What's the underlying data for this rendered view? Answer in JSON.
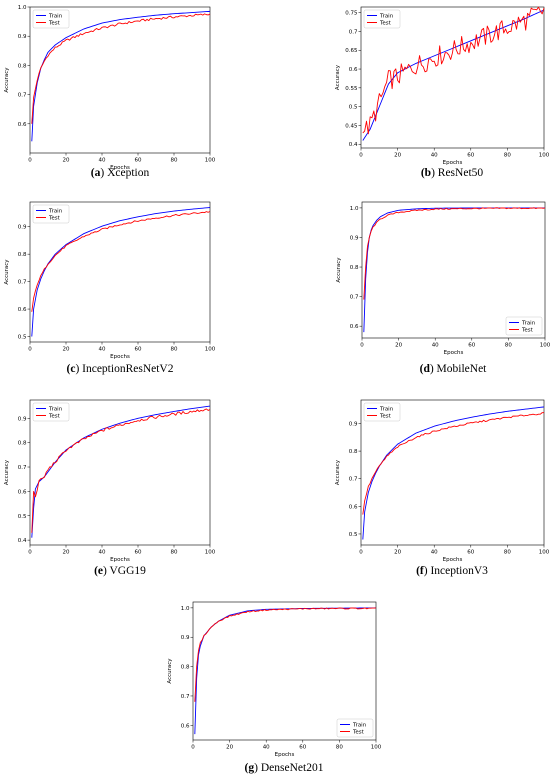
{
  "chart_data": [
    {
      "type": "line",
      "caption_letter": "(a)",
      "caption_name": "Xception",
      "xlabel": "Epochs",
      "ylabel": "Accuracy",
      "xlim": [
        0,
        100
      ],
      "ylim": [
        0.5,
        1.0
      ],
      "xticks": [
        0,
        20,
        40,
        60,
        80,
        100
      ],
      "yticks": [
        0.6,
        0.7,
        0.8,
        0.9,
        1.0
      ],
      "legend_position": "upper-left",
      "series": [
        {
          "name": "Train",
          "color": "#0000ff",
          "x": [
            1,
            2,
            4,
            6,
            8,
            10,
            14,
            20,
            30,
            40,
            50,
            60,
            70,
            80,
            90,
            100
          ],
          "y": [
            0.54,
            0.66,
            0.74,
            0.79,
            0.82,
            0.845,
            0.87,
            0.895,
            0.925,
            0.945,
            0.957,
            0.965,
            0.972,
            0.977,
            0.981,
            0.985
          ]
        },
        {
          "name": "Test",
          "color": "#ff0000",
          "x": [
            1,
            2,
            4,
            6,
            8,
            10,
            14,
            20,
            30,
            40,
            50,
            60,
            70,
            80,
            90,
            100
          ],
          "y": [
            0.6,
            0.69,
            0.75,
            0.79,
            0.815,
            0.835,
            0.86,
            0.885,
            0.91,
            0.928,
            0.942,
            0.952,
            0.96,
            0.966,
            0.971,
            0.975
          ],
          "noise": 0.004
        }
      ]
    },
    {
      "type": "line",
      "caption_letter": "(b)",
      "caption_name": "ResNet50",
      "xlabel": "Epochs",
      "ylabel": "Accuracy",
      "xlim": [
        0,
        100
      ],
      "ylim": [
        0.39,
        0.765
      ],
      "xticks": [
        0,
        20,
        40,
        60,
        80,
        100
      ],
      "yticks": [
        0.4,
        0.45,
        0.5,
        0.55,
        0.6,
        0.65,
        0.7,
        0.75
      ],
      "legend_position": "upper-left",
      "series": [
        {
          "name": "Train",
          "color": "#0000ff",
          "x": [
            1,
            5,
            10,
            15,
            20,
            30,
            40,
            50,
            60,
            70,
            80,
            90,
            100
          ],
          "y": [
            0.41,
            0.44,
            0.5,
            0.56,
            0.59,
            0.615,
            0.635,
            0.655,
            0.675,
            0.695,
            0.715,
            0.735,
            0.757
          ]
        },
        {
          "name": "Test",
          "color": "#ff0000",
          "x": [
            1,
            5,
            10,
            15,
            20,
            30,
            40,
            50,
            60,
            70,
            80,
            90,
            100
          ],
          "y": [
            0.43,
            0.45,
            0.51,
            0.57,
            0.58,
            0.61,
            0.63,
            0.65,
            0.67,
            0.69,
            0.71,
            0.73,
            0.755
          ],
          "noise": 0.028
        }
      ]
    },
    {
      "type": "line",
      "caption_letter": "(c)",
      "caption_name": "InceptionResNetV2",
      "xlabel": "Epochs",
      "ylabel": "Accuracy",
      "xlim": [
        0,
        100
      ],
      "ylim": [
        0.48,
        0.99
      ],
      "xticks": [
        0,
        20,
        40,
        60,
        80,
        100
      ],
      "yticks": [
        0.5,
        0.6,
        0.7,
        0.8,
        0.9
      ],
      "legend_position": "upper-left",
      "series": [
        {
          "name": "Train",
          "color": "#0000ff",
          "x": [
            1,
            2,
            4,
            6,
            8,
            10,
            14,
            20,
            30,
            40,
            50,
            60,
            70,
            80,
            90,
            100
          ],
          "y": [
            0.5,
            0.6,
            0.67,
            0.71,
            0.74,
            0.765,
            0.8,
            0.835,
            0.875,
            0.902,
            0.922,
            0.936,
            0.948,
            0.957,
            0.964,
            0.97
          ]
        },
        {
          "name": "Test",
          "color": "#ff0000",
          "x": [
            1,
            2,
            4,
            6,
            8,
            10,
            14,
            20,
            30,
            40,
            50,
            60,
            70,
            80,
            90,
            100
          ],
          "y": [
            0.59,
            0.64,
            0.69,
            0.72,
            0.745,
            0.765,
            0.795,
            0.83,
            0.865,
            0.89,
            0.908,
            0.921,
            0.932,
            0.941,
            0.948,
            0.955
          ],
          "noise": 0.003
        }
      ]
    },
    {
      "type": "line",
      "caption_letter": "(d)",
      "caption_name": "MobileNet",
      "xlabel": "Epochs",
      "ylabel": "Accuracy",
      "xlim": [
        0,
        100
      ],
      "ylim": [
        0.56,
        1.02
      ],
      "xticks": [
        0,
        20,
        40,
        60,
        80,
        100
      ],
      "yticks": [
        0.6,
        0.7,
        0.8,
        0.9,
        1.0
      ],
      "legend_position": "lower-right",
      "series": [
        {
          "name": "Train",
          "color": "#0000ff",
          "x": [
            1,
            2,
            3,
            4,
            5,
            6,
            8,
            10,
            14,
            20,
            30,
            40,
            60,
            80,
            100
          ],
          "y": [
            0.58,
            0.76,
            0.85,
            0.9,
            0.925,
            0.94,
            0.958,
            0.97,
            0.983,
            0.992,
            0.997,
            0.999,
            1.0,
            1.0,
            1.0
          ]
        },
        {
          "name": "Test",
          "color": "#ff0000",
          "x": [
            1,
            2,
            3,
            4,
            5,
            6,
            8,
            10,
            14,
            20,
            30,
            40,
            60,
            80,
            100
          ],
          "y": [
            0.69,
            0.8,
            0.87,
            0.9,
            0.92,
            0.935,
            0.95,
            0.962,
            0.975,
            0.985,
            0.992,
            0.996,
            0.998,
            0.999,
            0.999
          ],
          "noise": 0.002
        }
      ]
    },
    {
      "type": "line",
      "caption_letter": "(e)",
      "caption_name": "VGG19",
      "xlabel": "Epochs",
      "ylabel": "Accuracy",
      "xlim": [
        0,
        100
      ],
      "ylim": [
        0.38,
        0.975
      ],
      "xticks": [
        0,
        20,
        40,
        60,
        80,
        100
      ],
      "yticks": [
        0.4,
        0.5,
        0.6,
        0.7,
        0.8,
        0.9
      ],
      "legend_position": "upper-left",
      "series": [
        {
          "name": "Train",
          "color": "#0000ff",
          "x": [
            1,
            2,
            3,
            5,
            8,
            10,
            14,
            20,
            30,
            40,
            50,
            60,
            70,
            80,
            90,
            100
          ],
          "y": [
            0.41,
            0.53,
            0.61,
            0.64,
            0.66,
            0.68,
            0.72,
            0.77,
            0.82,
            0.855,
            0.88,
            0.9,
            0.915,
            0.928,
            0.94,
            0.95
          ]
        },
        {
          "name": "Test",
          "color": "#ff0000",
          "x": [
            1,
            2,
            3,
            5,
            8,
            10,
            14,
            20,
            30,
            40,
            50,
            60,
            70,
            80,
            90,
            100
          ],
          "y": [
            0.43,
            0.6,
            0.58,
            0.64,
            0.66,
            0.69,
            0.72,
            0.77,
            0.815,
            0.85,
            0.872,
            0.892,
            0.905,
            0.917,
            0.928,
            0.938
          ],
          "noise": 0.006
        }
      ]
    },
    {
      "type": "line",
      "caption_letter": "(f)",
      "caption_name": "InceptionV3",
      "xlabel": "Epochs",
      "ylabel": "Accuracy",
      "xlim": [
        0,
        100
      ],
      "ylim": [
        0.46,
        0.985
      ],
      "xticks": [
        0,
        20,
        40,
        60,
        80,
        100
      ],
      "yticks": [
        0.5,
        0.6,
        0.7,
        0.8,
        0.9
      ],
      "legend_position": "upper-left",
      "series": [
        {
          "name": "Train",
          "color": "#0000ff",
          "x": [
            1,
            2,
            4,
            6,
            8,
            10,
            14,
            20,
            30,
            40,
            50,
            60,
            70,
            80,
            90,
            100
          ],
          "y": [
            0.48,
            0.58,
            0.65,
            0.69,
            0.72,
            0.745,
            0.785,
            0.825,
            0.865,
            0.89,
            0.908,
            0.922,
            0.934,
            0.944,
            0.952,
            0.96
          ]
        },
        {
          "name": "Test",
          "color": "#ff0000",
          "x": [
            1,
            2,
            4,
            6,
            8,
            10,
            14,
            20,
            30,
            40,
            50,
            60,
            70,
            80,
            90,
            100
          ],
          "y": [
            0.57,
            0.62,
            0.67,
            0.7,
            0.725,
            0.745,
            0.78,
            0.815,
            0.85,
            0.872,
            0.888,
            0.901,
            0.912,
            0.922,
            0.93,
            0.937
          ],
          "noise": 0.003
        }
      ]
    },
    {
      "type": "line",
      "caption_letter": "(g)",
      "caption_name": "DenseNet201",
      "xlabel": "Epochs",
      "ylabel": "Accuracy",
      "xlim": [
        0,
        100
      ],
      "ylim": [
        0.55,
        1.02
      ],
      "xticks": [
        0,
        20,
        40,
        60,
        80,
        100
      ],
      "yticks": [
        0.6,
        0.7,
        0.8,
        0.9,
        1.0
      ],
      "legend_position": "lower-right",
      "series": [
        {
          "name": "Train",
          "color": "#0000ff",
          "x": [
            1,
            2,
            3,
            4,
            6,
            8,
            10,
            14,
            20,
            30,
            40,
            60,
            80,
            100
          ],
          "y": [
            0.57,
            0.76,
            0.84,
            0.87,
            0.905,
            0.92,
            0.935,
            0.955,
            0.975,
            0.99,
            0.995,
            0.998,
            0.999,
            1.0
          ]
        },
        {
          "name": "Test",
          "color": "#ff0000",
          "x": [
            1,
            2,
            3,
            4,
            6,
            8,
            10,
            14,
            20,
            30,
            40,
            60,
            80,
            100
          ],
          "y": [
            0.68,
            0.8,
            0.855,
            0.88,
            0.905,
            0.92,
            0.935,
            0.955,
            0.972,
            0.987,
            0.993,
            0.997,
            0.998,
            0.998
          ],
          "noise": 0.002
        }
      ]
    }
  ]
}
